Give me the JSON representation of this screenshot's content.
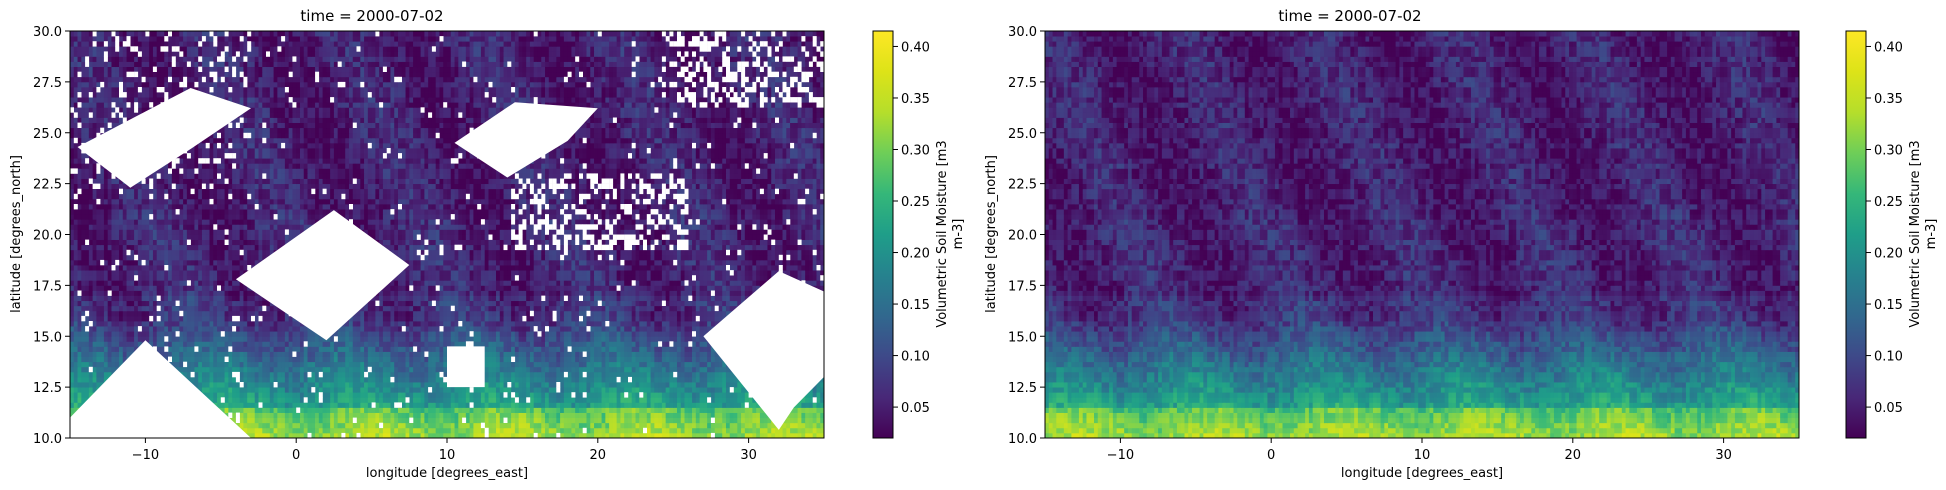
{
  "chart_data": [
    {
      "type": "heatmap",
      "title": "time = 2000-07-02",
      "xlabel": "longitude [degrees_east]",
      "ylabel": "latitude [degrees_north]",
      "xlim": [
        -15,
        35
      ],
      "ylim": [
        10,
        30
      ],
      "xticks": [
        -10,
        0,
        10,
        20,
        30
      ],
      "xtick_labels": [
        "−10",
        "0",
        "10",
        "20",
        "30"
      ],
      "yticks": [
        10.0,
        12.5,
        15.0,
        17.5,
        20.0,
        22.5,
        25.0,
        27.5,
        30.0
      ],
      "ytick_labels": [
        "10.0",
        "12.5",
        "15.0",
        "17.5",
        "20.0",
        "22.5",
        "25.0",
        "27.5",
        "30.0"
      ],
      "colormap": "viridis",
      "colorbar": {
        "label": "Volumetric Soil Moisture [m3 m-3]",
        "label_lines": [
          "Volumetric Soil Moisture [m3",
          "m-3]"
        ],
        "range": [
          0.02,
          0.415
        ],
        "ticks": [
          0.05,
          0.1,
          0.15,
          0.2,
          0.25,
          0.3,
          0.35,
          0.4
        ],
        "tick_labels": [
          "0.05",
          "0.10",
          "0.15",
          "0.20",
          "0.25",
          "0.30",
          "0.35",
          "0.40"
        ]
      },
      "missing_data": "white gaps where no values are present (large diamond-shaped swath gaps plus scattered pixels)"
    },
    {
      "type": "heatmap",
      "title": "time = 2000-07-02",
      "xlabel": "longitude [degrees_east]",
      "ylabel": "latitude [degrees_north]",
      "xlim": [
        -15,
        35
      ],
      "ylim": [
        10,
        30
      ],
      "xticks": [
        -10,
        0,
        10,
        20,
        30
      ],
      "xtick_labels": [
        "−10",
        "0",
        "10",
        "20",
        "30"
      ],
      "yticks": [
        10.0,
        12.5,
        15.0,
        17.5,
        20.0,
        22.5,
        25.0,
        27.5,
        30.0
      ],
      "ytick_labels": [
        "10.0",
        "12.5",
        "15.0",
        "17.5",
        "20.0",
        "22.5",
        "25.0",
        "27.5",
        "30.0"
      ],
      "colormap": "viridis",
      "colorbar": {
        "label": "Volumetric Soil Moisture [m3 m-3]",
        "label_lines": [
          "Volumetric Soil Moisture [m3",
          "m-3]"
        ],
        "range": [
          0.02,
          0.415
        ],
        "ticks": [
          0.05,
          0.1,
          0.15,
          0.2,
          0.25,
          0.3,
          0.35,
          0.4
        ],
        "tick_labels": [
          "0.05",
          "0.10",
          "0.15",
          "0.20",
          "0.25",
          "0.30",
          "0.35",
          "0.40"
        ]
      },
      "missing_data": "none (gap-filled field)"
    }
  ]
}
